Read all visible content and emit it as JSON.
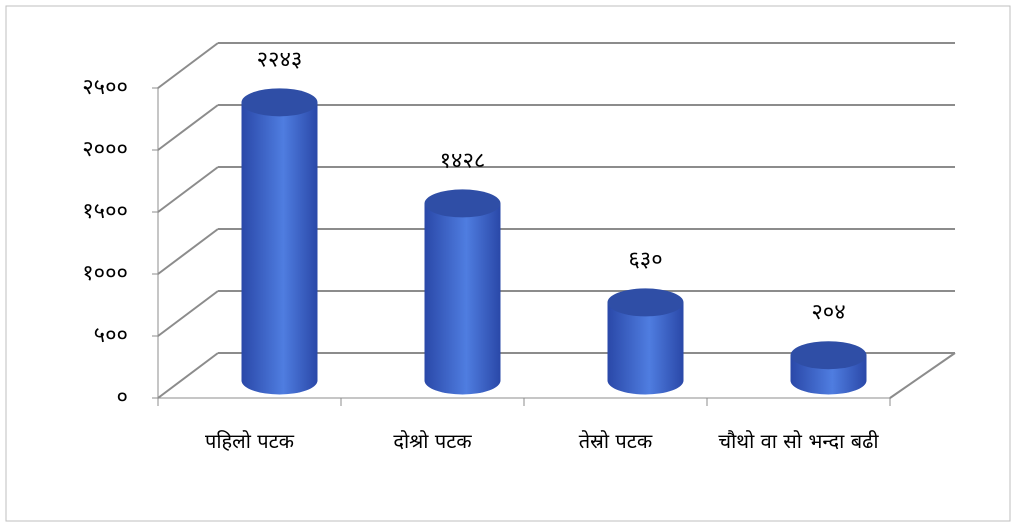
{
  "chart_data": {
    "type": "bar3d",
    "categories": [
      "पहिलो पटक",
      "दोश्रो पटक",
      "तेस्रो पटक",
      "चौथो वा सो भन्दा बढी"
    ],
    "values": [
      2243,
      1428,
      630,
      204
    ],
    "value_labels": [
      "२२४३",
      "१४२८",
      "६३०",
      "२०४"
    ],
    "color": "#3c62c8",
    "ylim": [
      0,
      2500
    ],
    "yticks": [
      {
        "value": 0,
        "label": "०"
      },
      {
        "value": 500,
        "label": "५००"
      },
      {
        "value": 1000,
        "label": "१०००"
      },
      {
        "value": 1500,
        "label": "१५००"
      },
      {
        "value": 2000,
        "label": "२०००"
      },
      {
        "value": 2500,
        "label": "२५००"
      }
    ],
    "grid": true
  }
}
